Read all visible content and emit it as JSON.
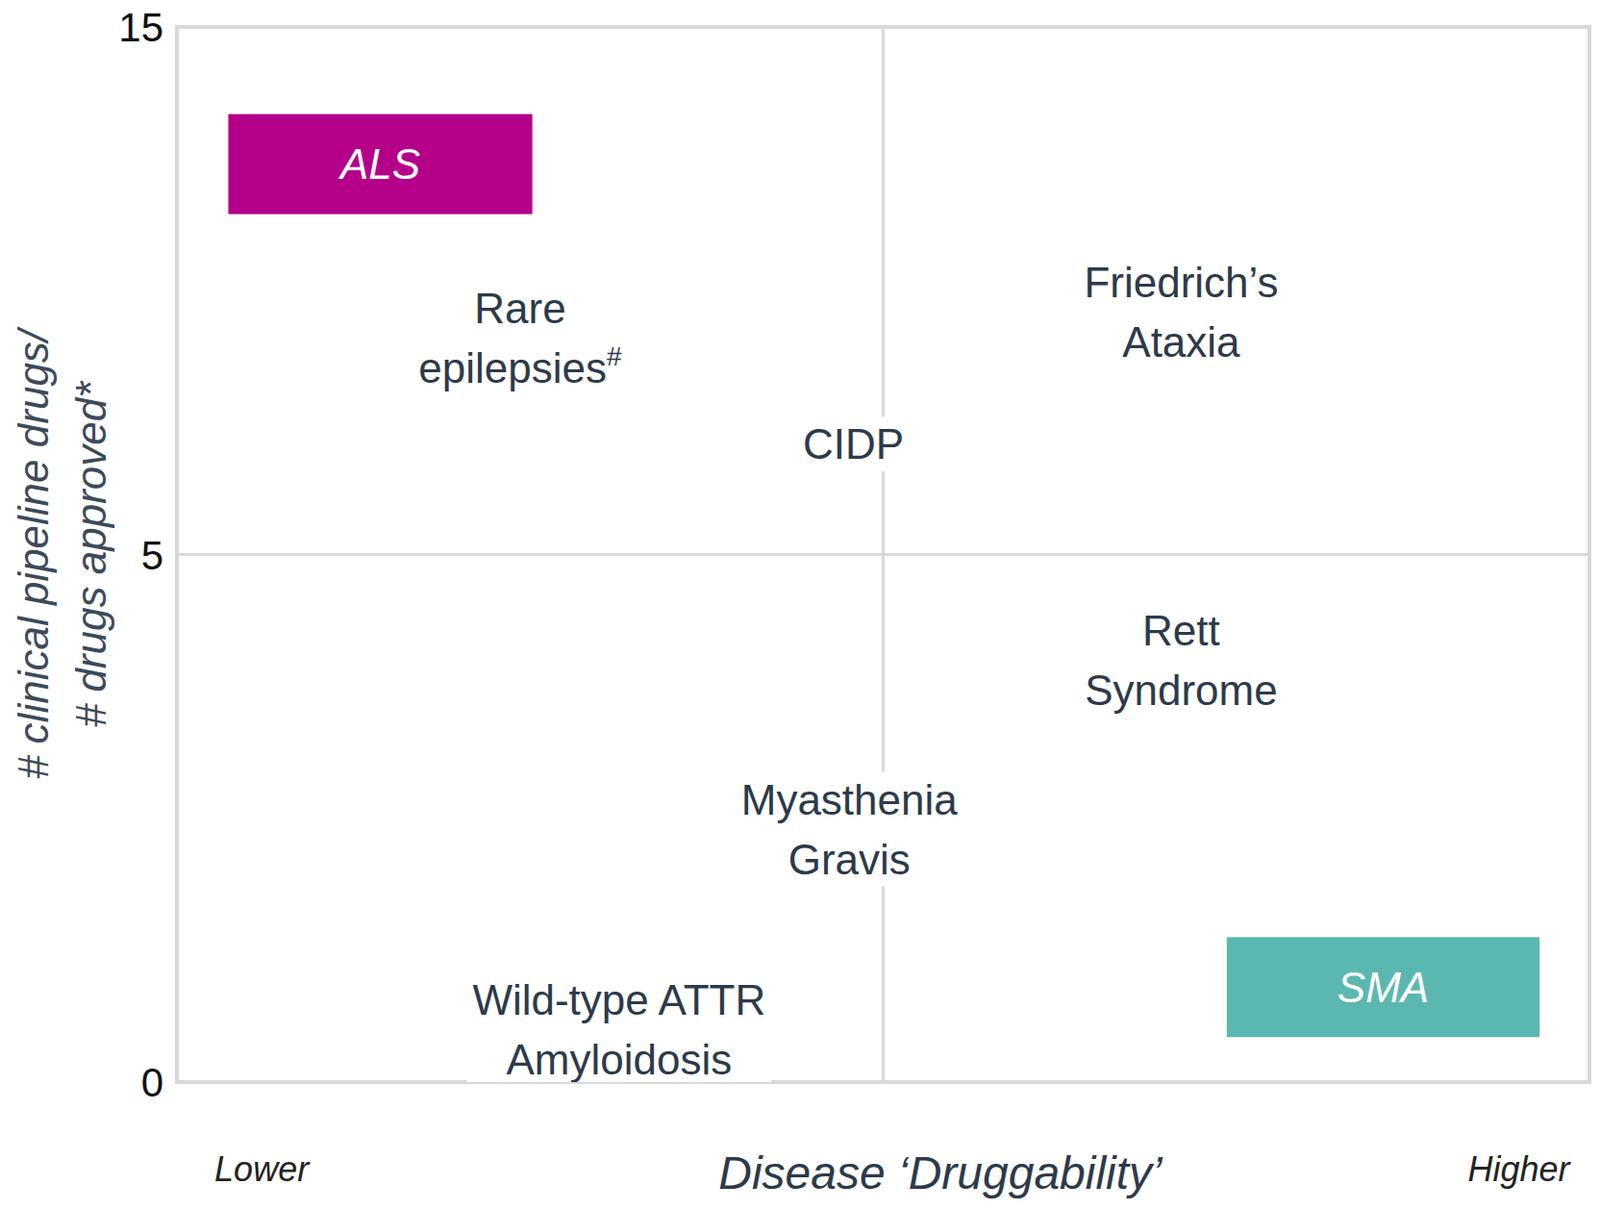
{
  "chart_data": {
    "type": "quadrant",
    "y_label": [
      "# clinical pipeline drugs/",
      "# drugs approved*"
    ],
    "x_label": "Disease ‘Druggability’",
    "annotations": [
      {
        "text": "Lower",
        "x": 0.6
      },
      {
        "text": "Higher",
        "x": 9.5
      }
    ],
    "xlim": [
      0,
      10
    ],
    "xticks": [
      5
    ],
    "ylim": [
      0,
      15
    ],
    "yticks": [
      0,
      5,
      15
    ],
    "grid": true,
    "tick_labels": "y",
    "points": [
      {
        "label": [
          "ALS"
        ],
        "x": 1.44,
        "y": 12.4,
        "color": "#b5008a"
      },
      {
        "label": [
          "Rare",
          "epilepsies"
        ],
        "superscript": "#",
        "x": 2.43,
        "y": 9.1
      },
      {
        "label": [
          "Friedrich’s",
          "Ataxia"
        ],
        "x": 7.11,
        "y": 9.6
      },
      {
        "label": [
          "CIDP"
        ],
        "x": 4.79,
        "y": 7.1
      },
      {
        "label": [
          "Rett",
          "Syndrome"
        ],
        "x": 7.11,
        "y": 4.0
      },
      {
        "label": [
          "Myasthenia",
          "Gravis"
        ],
        "x": 4.76,
        "y": 2.4
      },
      {
        "label": [
          "Wild-type ATTR",
          "Amyloidosis"
        ],
        "x": 3.13,
        "y": 0.5
      },
      {
        "label": [
          "SMA"
        ],
        "x": 8.54,
        "y": 0.9,
        "color": "#5bb8b0"
      }
    ]
  }
}
